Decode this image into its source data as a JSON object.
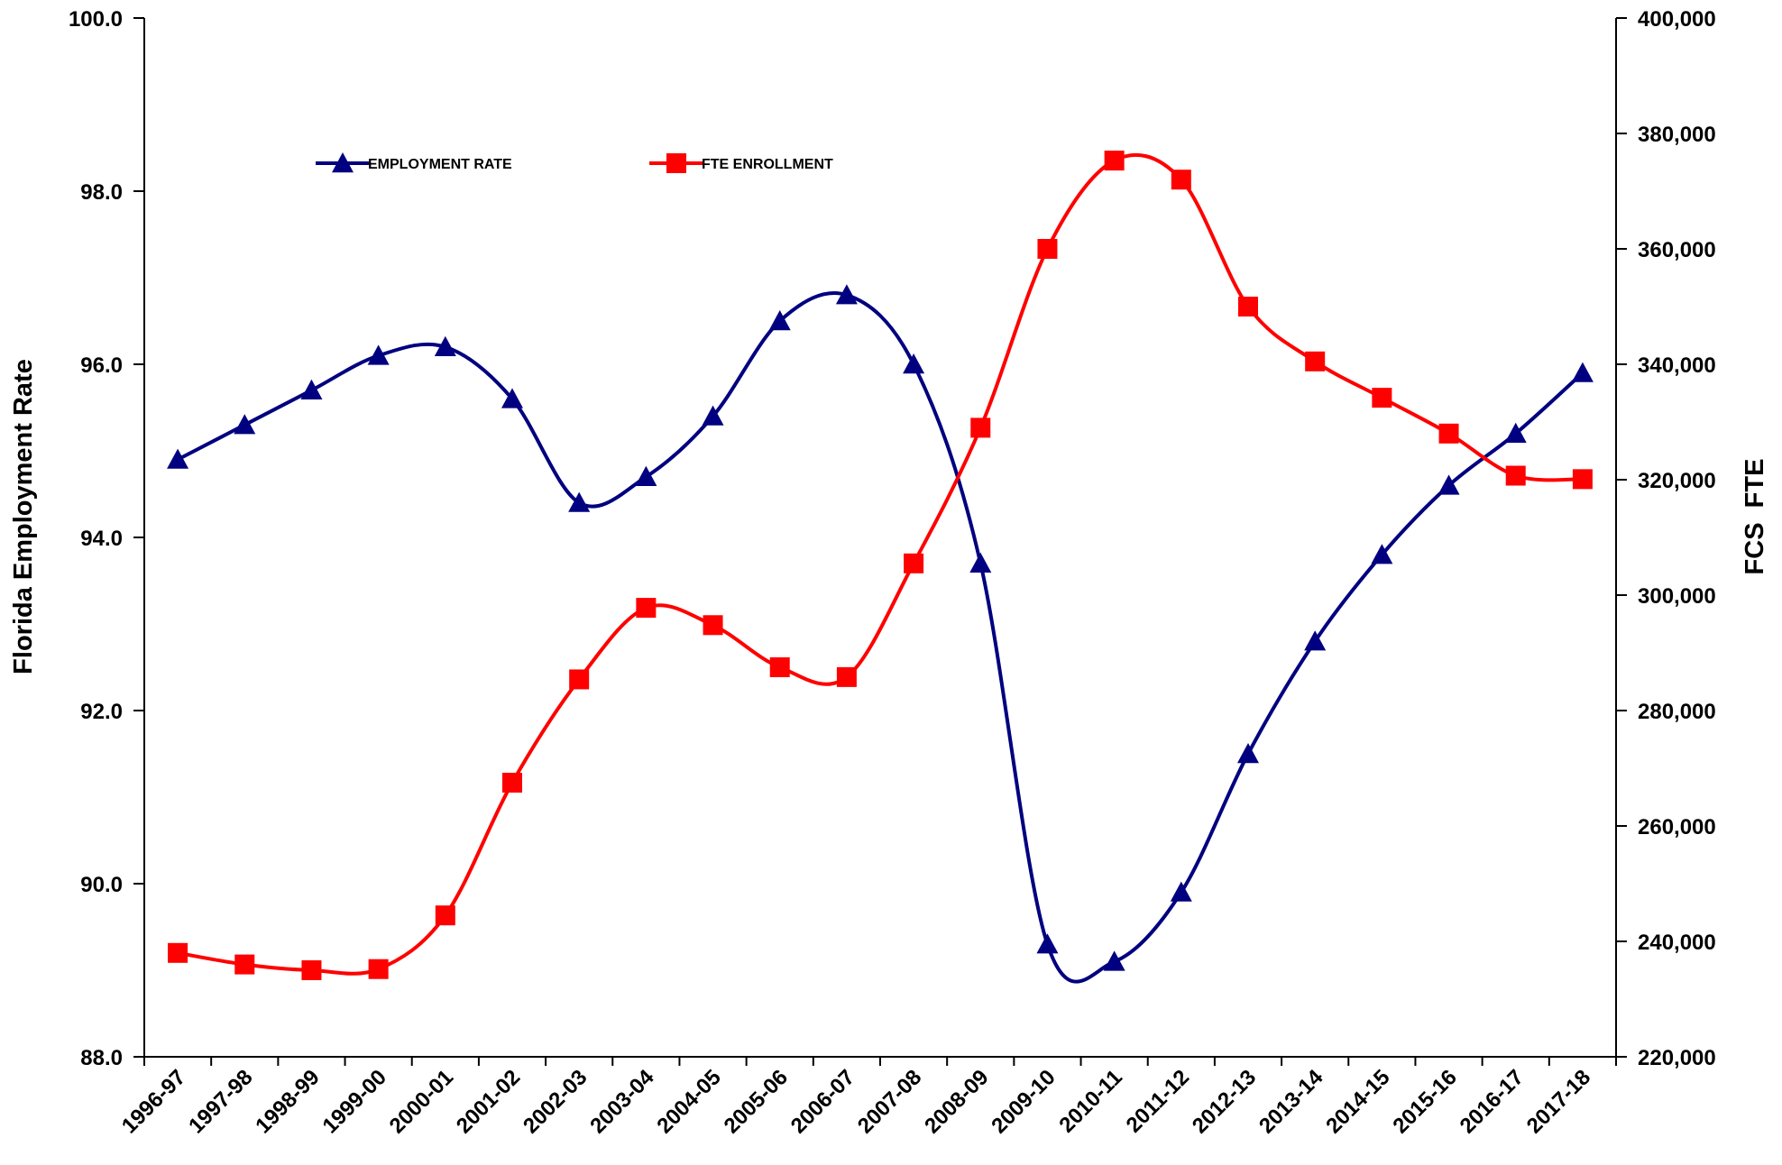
{
  "chart_data": {
    "type": "line",
    "categories": [
      "1996-97",
      "1997-98",
      "1998-99",
      "1999-00",
      "2000-01",
      "2001-02",
      "2002-03",
      "2003-04",
      "2004-05",
      "2005-06",
      "2006-07",
      "2007-08",
      "2008-09",
      "2009-10",
      "2010-11",
      "2011-12",
      "2012-13",
      "2013-14",
      "2014-15",
      "2015-16",
      "2016-17",
      "2017-18"
    ],
    "y_left": {
      "label": "Florida Employment Rate",
      "range": [
        88.0,
        100.0
      ],
      "ticks": [
        "88.0",
        "90.0",
        "92.0",
        "94.0",
        "96.0",
        "98.0",
        "100.0"
      ]
    },
    "y_right": {
      "label": "FCS  FTE",
      "range": [
        220000,
        400000
      ],
      "ticks": [
        "220,000",
        "240,000",
        "260,000",
        "280,000",
        "300,000",
        "320,000",
        "340,000",
        "360,000",
        "380,000",
        "400,000"
      ]
    },
    "series": [
      {
        "name": "EMPLOYMENT RATE",
        "axis": "left",
        "marker": "triangle",
        "color": "#000080",
        "values": [
          94.9,
          95.3,
          95.7,
          96.1,
          96.2,
          95.6,
          94.4,
          94.7,
          95.4,
          96.5,
          96.8,
          96.0,
          93.7,
          89.3,
          89.1,
          89.9,
          91.5,
          92.8,
          93.8,
          94.6,
          95.2,
          95.9
        ]
      },
      {
        "name": "FTE ENROLLMENT",
        "axis": "right",
        "marker": "square",
        "color": "#ff0000",
        "values": [
          238000,
          236000,
          235000,
          235200,
          244500,
          267500,
          285400,
          297800,
          294800,
          287500,
          285800,
          305500,
          329000,
          360000,
          375300,
          372000,
          350000,
          340500,
          334200,
          328000,
          320700,
          320100
        ]
      }
    ],
    "legend": "top-left",
    "grid": false
  }
}
